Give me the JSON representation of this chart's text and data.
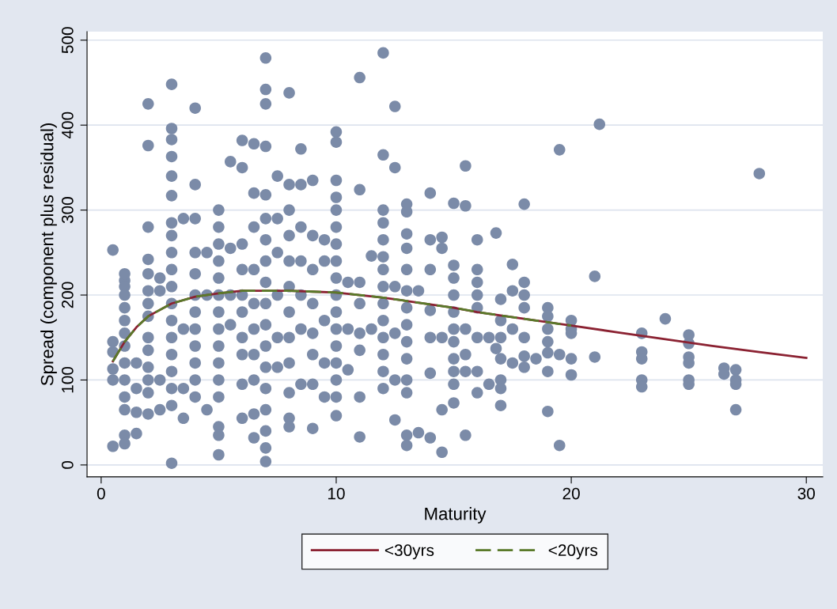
{
  "chart_data": {
    "type": "scatter",
    "xlabel": "Maturity",
    "ylabel": "Spread (component plus residual)",
    "xlim": [
      -0.6,
      30.7
    ],
    "ylim": [
      -14,
      510
    ],
    "xticks": [
      0,
      10,
      20,
      30
    ],
    "yticks": [
      0,
      100,
      200,
      300,
      400,
      500
    ],
    "grid": "y",
    "legend": "bottom",
    "marker": "circle",
    "series": [
      {
        "color": "#7b8ba8",
        "x": [
          0.5,
          0.5,
          0.5,
          0.5,
          0.5,
          0.5,
          1,
          1,
          1,
          1,
          1,
          1,
          1,
          1,
          1,
          1,
          1,
          1,
          1,
          1,
          1.5,
          1.5,
          1.5,
          1.5,
          2,
          2,
          2,
          2,
          2,
          2,
          2,
          2,
          2,
          2,
          2,
          2,
          2,
          2,
          2.5,
          2.5,
          2.5,
          2.5,
          3,
          3,
          3,
          3,
          3,
          3,
          3,
          3,
          3,
          3,
          3,
          3,
          3,
          3,
          3,
          3,
          3,
          3,
          3,
          3.5,
          3.5,
          3.5,
          3.5,
          4,
          4,
          4,
          4,
          4,
          4,
          4,
          4,
          4,
          4,
          4,
          4,
          4.5,
          4.5,
          4.5,
          5,
          5,
          5,
          5,
          5,
          5,
          5,
          5,
          5,
          5,
          5,
          5,
          5,
          5,
          5,
          5.5,
          5.5,
          5.5,
          5.5,
          6,
          6,
          6,
          6,
          6,
          6,
          6,
          6,
          6,
          6,
          6.5,
          6.5,
          6.5,
          6.5,
          6.5,
          6.5,
          6.5,
          6.5,
          6.5,
          6.5,
          7,
          7,
          7,
          7,
          7,
          7,
          7,
          7,
          7,
          7,
          7,
          7,
          7,
          7,
          7,
          7,
          7,
          7,
          7.5,
          7.5,
          7.5,
          7.5,
          7.5,
          7.5,
          8,
          8,
          8,
          8,
          8,
          8,
          8,
          8,
          8,
          8,
          8,
          8,
          8.5,
          8.5,
          8.5,
          8.5,
          8.5,
          8.5,
          8.5,
          9,
          9,
          9,
          9,
          9,
          9,
          9,
          9,
          9.5,
          9.5,
          9.5,
          9.5,
          9.5,
          10,
          10,
          10,
          10,
          10,
          10,
          10,
          10,
          10,
          10,
          10,
          10,
          10,
          10,
          10,
          10,
          10,
          10.5,
          10.5,
          10.5,
          11,
          11,
          11,
          11,
          11,
          11,
          11,
          11,
          11.5,
          11.5,
          12,
          12,
          12,
          12,
          12,
          12,
          12,
          12,
          12,
          12,
          12,
          12,
          12,
          12,
          12.5,
          12.5,
          12.5,
          12.5,
          12.5,
          12.5,
          13,
          13,
          13,
          13,
          13,
          13,
          13,
          13,
          13,
          13,
          13,
          13,
          13,
          13,
          13.5,
          13.5,
          14,
          14,
          14,
          14,
          14,
          14,
          14,
          14.5,
          14.5,
          14.5,
          14.5,
          14.5,
          15,
          15,
          15,
          15,
          15,
          15,
          15,
          15,
          15,
          15,
          15,
          15.5,
          15.5,
          15.5,
          15.5,
          15.5,
          15.5,
          16,
          16,
          16,
          16,
          16,
          16,
          16,
          16,
          16.5,
          16.5,
          16.8,
          16.8,
          17,
          17,
          17,
          17,
          17,
          17,
          17,
          17.5,
          17.5,
          17.5,
          17.5,
          18,
          18,
          18,
          18,
          18,
          18,
          18,
          18.5,
          19,
          19,
          19,
          19,
          19,
          19,
          19,
          19.5,
          19.5,
          19.5,
          20,
          20,
          20,
          20,
          20,
          21,
          21,
          21.2,
          23,
          23,
          23,
          23,
          23,
          24,
          25,
          25,
          25,
          25,
          25,
          25,
          26.5,
          26.5,
          27,
          27,
          27,
          27,
          28
        ],
        "values": [
          253,
          145,
          133,
          113,
          100,
          22,
          217,
          225,
          210,
          200,
          185,
          170,
          155,
          140,
          120,
          100,
          80,
          65,
          35,
          25,
          120,
          90,
          62,
          37,
          425,
          376,
          280,
          242,
          225,
          205,
          190,
          175,
          150,
          135,
          115,
          100,
          85,
          60,
          220,
          205,
          100,
          65,
          448,
          396,
          383,
          363,
          340,
          317,
          285,
          270,
          250,
          230,
          210,
          190,
          170,
          150,
          130,
          110,
          90,
          70,
          2,
          290,
          160,
          90,
          55,
          420,
          330,
          290,
          250,
          225,
          200,
          180,
          160,
          140,
          120,
          100,
          80,
          250,
          200,
          65,
          300,
          280,
          260,
          240,
          220,
          200,
          180,
          160,
          140,
          120,
          100,
          80,
          45,
          35,
          12,
          357,
          255,
          200,
          165,
          382,
          350,
          260,
          230,
          200,
          180,
          150,
          130,
          95,
          55,
          378,
          320,
          280,
          230,
          190,
          160,
          130,
          100,
          60,
          32,
          479,
          442,
          425,
          375,
          318,
          290,
          265,
          240,
          215,
          190,
          165,
          140,
          115,
          90,
          65,
          40,
          20,
          4,
          340,
          290,
          250,
          200,
          150,
          115,
          438,
          330,
          300,
          270,
          240,
          210,
          180,
          150,
          120,
          85,
          55,
          45,
          372,
          330,
          280,
          240,
          200,
          160,
          95,
          335,
          270,
          230,
          190,
          155,
          130,
          95,
          43,
          265,
          240,
          170,
          120,
          80,
          392,
          380,
          335,
          315,
          300,
          280,
          260,
          240,
          220,
          200,
          180,
          160,
          140,
          120,
          100,
          80,
          58,
          215,
          160,
          112,
          456,
          324,
          215,
          190,
          155,
          135,
          80,
          33,
          246,
          160,
          485,
          365,
          300,
          285,
          265,
          245,
          230,
          210,
          190,
          170,
          150,
          130,
          110,
          90,
          422,
          350,
          210,
          155,
          100,
          53,
          307,
          298,
          272,
          255,
          230,
          205,
          185,
          165,
          145,
          125,
          100,
          85,
          35,
          23,
          205,
          38,
          320,
          265,
          230,
          182,
          150,
          108,
          32,
          268,
          255,
          150,
          65,
          15,
          308,
          235,
          220,
          200,
          180,
          160,
          145,
          125,
          110,
          95,
          73,
          352,
          305,
          160,
          130,
          110,
          35,
          265,
          230,
          215,
          200,
          185,
          150,
          110,
          85,
          150,
          95,
          273,
          137,
          195,
          170,
          150,
          125,
          100,
          90,
          70,
          236,
          205,
          160,
          120,
          307,
          215,
          200,
          185,
          150,
          128,
          115,
          125,
          185,
          175,
          160,
          145,
          132,
          110,
          63,
          371,
          130,
          23,
          170,
          160,
          155,
          125,
          106,
          222,
          127,
          401,
          155,
          133,
          125,
          100,
          92,
          172,
          153,
          143,
          127,
          120,
          100,
          95,
          114,
          107,
          112,
          100,
          95,
          65,
          343
        ]
      },
      {
        "type": "line",
        "name": "<30yrs",
        "color": "#8b2232",
        "line_style": "solid",
        "marker": "none",
        "x": [
          0.5,
          1,
          1.5,
          2,
          3,
          4,
          5,
          6,
          7,
          8,
          9,
          10,
          11,
          12,
          13,
          14,
          15,
          16,
          17,
          18,
          19,
          20,
          22,
          24,
          26,
          28,
          30
        ],
        "values": [
          122,
          145,
          162,
          175,
          190,
          198,
          202,
          205,
          205,
          205,
          204,
          203,
          200,
          197,
          193,
          189,
          185,
          180,
          176,
          172,
          168,
          164,
          156,
          148,
          140,
          133,
          126
        ]
      },
      {
        "type": "line",
        "name": "<20yrs",
        "color": "#5a7a2a",
        "line_style": "dashed",
        "marker": "none",
        "x": [
          0.5,
          1,
          1.5,
          2,
          3,
          4,
          5,
          6,
          7,
          8,
          9,
          10,
          11,
          12,
          13,
          14,
          15,
          16,
          17,
          18,
          19,
          20
        ],
        "values": [
          122,
          145,
          162,
          175,
          190,
          198,
          202,
          205,
          205,
          205,
          204,
          203,
          200,
          197,
          193,
          189,
          185,
          180,
          176,
          172,
          168,
          164
        ]
      }
    ]
  }
}
